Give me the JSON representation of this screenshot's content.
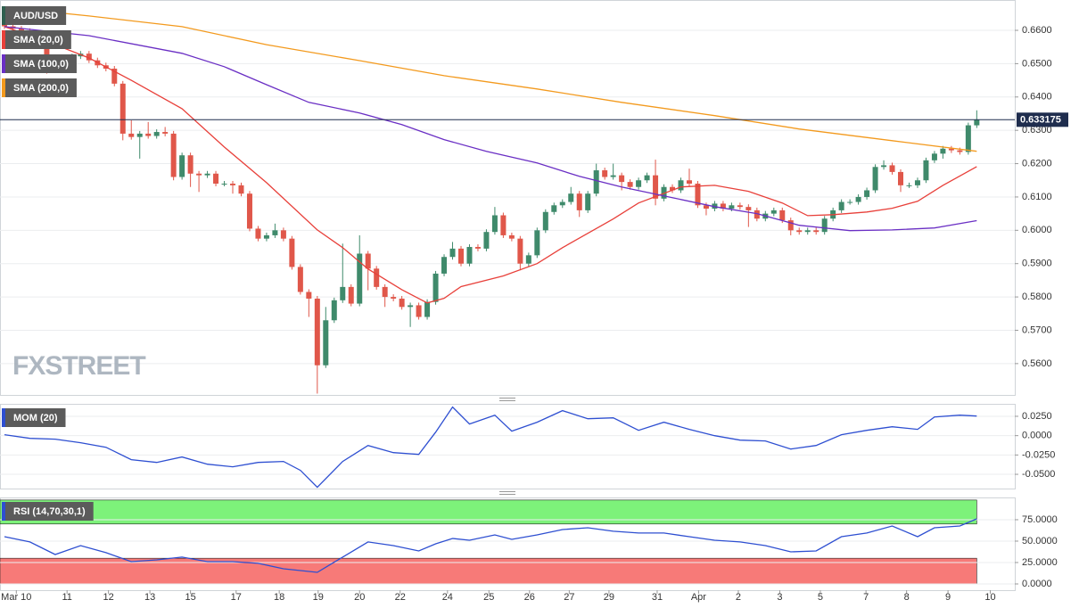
{
  "chart_data": [
    {
      "type": "candlestick",
      "title": "AUD/USD",
      "watermark": "FXSTREET",
      "up_color": "#3f8a6b",
      "down_color": "#e0574a",
      "open": [
        0.662,
        0.6612,
        0.6605,
        0.6598,
        0.6592,
        0.657,
        0.649,
        0.6495,
        0.6518,
        0.6522,
        0.653,
        0.651,
        0.6495,
        0.6485,
        0.644,
        0.629,
        0.628,
        0.629,
        0.6283,
        0.6295,
        0.629,
        0.616,
        0.6225,
        0.617,
        0.6165,
        0.617,
        0.614,
        0.614,
        0.6135,
        0.611,
        0.6005,
        0.5975,
        0.5985,
        0.6,
        0.5975,
        0.589,
        0.5815,
        0.5795,
        0.5595,
        0.573,
        0.579,
        0.583,
        0.578,
        0.593,
        0.5885,
        0.583,
        0.58,
        0.5795,
        0.577,
        0.5775,
        0.574,
        0.5785,
        0.587,
        0.592,
        0.5945,
        0.59,
        0.595,
        0.5945,
        0.5995,
        0.6045,
        0.5985,
        0.5975,
        0.59,
        0.5925,
        0.6,
        0.6055,
        0.6075,
        0.6085,
        0.611,
        0.606,
        0.611,
        0.618,
        0.616,
        0.6165,
        0.6145,
        0.613,
        0.615,
        0.6165,
        0.6095,
        0.613,
        0.612,
        0.615,
        0.614,
        0.6075,
        0.6065,
        0.608,
        0.6065,
        0.6075,
        0.607,
        0.606,
        0.6035,
        0.605,
        0.606,
        0.603,
        0.6,
        0.5995,
        0.6,
        0.5995,
        0.6035,
        0.606,
        0.6085,
        0.6085,
        0.61,
        0.612,
        0.619,
        0.6195,
        0.6175,
        0.6135,
        0.6135,
        0.615,
        0.621,
        0.623,
        0.6245,
        0.624,
        0.6235,
        0.6315
      ],
      "high": [
        0.6628,
        0.662,
        0.6613,
        0.6606,
        0.66,
        0.6578,
        0.6503,
        0.6526,
        0.653,
        0.6538,
        0.6538,
        0.6518,
        0.6503,
        0.6493,
        0.6448,
        0.633,
        0.6298,
        0.6325,
        0.6303,
        0.631,
        0.6298,
        0.6233,
        0.6233,
        0.6178,
        0.6178,
        0.6178,
        0.6148,
        0.6148,
        0.6143,
        0.6118,
        0.6013,
        0.5993,
        0.602,
        0.6008,
        0.5983,
        0.5898,
        0.5823,
        0.5803,
        0.577,
        0.5798,
        0.596,
        0.5838,
        0.5985,
        0.5938,
        0.5893,
        0.5838,
        0.5808,
        0.5803,
        0.5783,
        0.5783,
        0.5793,
        0.5878,
        0.5928,
        0.5965,
        0.5953,
        0.5958,
        0.5958,
        0.6003,
        0.607,
        0.6053,
        0.5993,
        0.5983,
        0.5933,
        0.6008,
        0.6063,
        0.6083,
        0.6093,
        0.613,
        0.6118,
        0.6118,
        0.62,
        0.6188,
        0.62,
        0.6173,
        0.6153,
        0.6158,
        0.6173,
        0.6212,
        0.6138,
        0.6138,
        0.6158,
        0.6185,
        0.6148,
        0.6083,
        0.6088,
        0.6088,
        0.6083,
        0.6083,
        0.6078,
        0.6068,
        0.6058,
        0.6068,
        0.6068,
        0.6038,
        0.6008,
        0.6008,
        0.6008,
        0.6043,
        0.6068,
        0.6093,
        0.6093,
        0.6108,
        0.6128,
        0.6198,
        0.621,
        0.6203,
        0.6183,
        0.6143,
        0.6158,
        0.6218,
        0.6238,
        0.6253,
        0.6253,
        0.6248,
        0.6323,
        0.636
      ],
      "low": [
        0.6604,
        0.6597,
        0.659,
        0.6584,
        0.6562,
        0.647,
        0.6482,
        0.6487,
        0.651,
        0.6514,
        0.6502,
        0.6487,
        0.6477,
        0.6432,
        0.627,
        0.6272,
        0.6215,
        0.6275,
        0.6275,
        0.6282,
        0.615,
        0.6152,
        0.613,
        0.6115,
        0.6157,
        0.6132,
        0.6132,
        0.611,
        0.6102,
        0.5997,
        0.5967,
        0.5967,
        0.5977,
        0.5967,
        0.5882,
        0.5807,
        0.574,
        0.551,
        0.5587,
        0.5722,
        0.5782,
        0.5772,
        0.5772,
        0.582,
        0.5822,
        0.577,
        0.5787,
        0.5762,
        0.571,
        0.5732,
        0.5732,
        0.5777,
        0.5862,
        0.5912,
        0.5892,
        0.5892,
        0.5937,
        0.5937,
        0.5987,
        0.5977,
        0.5967,
        0.588,
        0.5892,
        0.5917,
        0.5992,
        0.6047,
        0.6067,
        0.6077,
        0.604,
        0.6052,
        0.6102,
        0.6152,
        0.6152,
        0.612,
        0.6122,
        0.6122,
        0.6142,
        0.6075,
        0.6087,
        0.6112,
        0.6112,
        0.6132,
        0.6067,
        0.6045,
        0.6057,
        0.6057,
        0.6057,
        0.6062,
        0.601,
        0.6027,
        0.6027,
        0.6042,
        0.6022,
        0.5985,
        0.5987,
        0.5987,
        0.5987,
        0.5987,
        0.6027,
        0.6052,
        0.6077,
        0.6077,
        0.6092,
        0.6112,
        0.6182,
        0.6167,
        0.6115,
        0.6127,
        0.6127,
        0.6142,
        0.6202,
        0.6215,
        0.6232,
        0.6227,
        0.6227,
        0.6307
      ],
      "close": [
        0.6612,
        0.6605,
        0.6598,
        0.6592,
        0.657,
        0.649,
        0.6495,
        0.6518,
        0.6522,
        0.653,
        0.651,
        0.6495,
        0.6485,
        0.644,
        0.629,
        0.628,
        0.629,
        0.6283,
        0.6295,
        0.629,
        0.616,
        0.6225,
        0.617,
        0.6165,
        0.617,
        0.614,
        0.614,
        0.6135,
        0.611,
        0.6005,
        0.5975,
        0.5985,
        0.6,
        0.5975,
        0.589,
        0.5815,
        0.5795,
        0.5595,
        0.573,
        0.579,
        0.583,
        0.578,
        0.593,
        0.5885,
        0.583,
        0.58,
        0.5795,
        0.577,
        0.5775,
        0.574,
        0.5785,
        0.587,
        0.592,
        0.5945,
        0.59,
        0.595,
        0.5945,
        0.5995,
        0.6045,
        0.5985,
        0.5975,
        0.59,
        0.5925,
        0.6,
        0.6055,
        0.6075,
        0.6085,
        0.611,
        0.606,
        0.611,
        0.618,
        0.616,
        0.6165,
        0.6145,
        0.613,
        0.615,
        0.6165,
        0.6095,
        0.613,
        0.612,
        0.615,
        0.614,
        0.6075,
        0.6065,
        0.608,
        0.6065,
        0.6075,
        0.607,
        0.606,
        0.6035,
        0.605,
        0.606,
        0.603,
        0.6,
        0.5995,
        0.6,
        0.5995,
        0.6035,
        0.606,
        0.6085,
        0.6085,
        0.61,
        0.612,
        0.619,
        0.6195,
        0.6175,
        0.6135,
        0.6135,
        0.615,
        0.621,
        0.623,
        0.6245,
        0.624,
        0.6235,
        0.6315,
        0.6332
      ],
      "series": [
        {
          "name": "SMA (20,0)",
          "color": "#e8403a",
          "x": [
            0,
            6,
            10,
            15,
            21,
            26,
            31,
            37,
            40,
            43,
            47,
            50,
            52,
            54,
            59,
            63,
            66,
            69,
            72,
            75,
            80,
            84,
            88,
            92,
            95,
            98,
            102,
            105,
            108,
            111,
            115
          ],
          "values": [
            0.6611,
            0.6557,
            0.6517,
            0.645,
            0.6365,
            0.625,
            0.6143,
            0.6001,
            0.5948,
            0.5884,
            0.5822,
            0.5782,
            0.5796,
            0.5831,
            0.5863,
            0.59,
            0.5948,
            0.5991,
            0.6034,
            0.6082,
            0.613,
            0.6135,
            0.6117,
            0.6082,
            0.6044,
            0.6047,
            0.6055,
            0.6066,
            0.6087,
            0.6135,
            0.6191
          ]
        },
        {
          "name": "SMA (100,0)",
          "color": "#6a2fc4",
          "x": [
            0,
            10,
            21,
            26,
            31,
            36,
            42,
            47,
            52,
            57,
            63,
            68,
            73,
            79,
            84,
            89,
            94,
            100,
            105,
            110,
            115
          ],
          "values": [
            0.6611,
            0.6584,
            0.6531,
            0.6491,
            0.6437,
            0.6384,
            0.6352,
            0.6317,
            0.6272,
            0.6237,
            0.6202,
            0.6162,
            0.613,
            0.6098,
            0.6071,
            0.605,
            0.6015,
            0.5999,
            0.6001,
            0.6007,
            0.6029
          ]
        },
        {
          "name": "SMA (200,0)",
          "color": "#f39a1e",
          "x": [
            0,
            10,
            21,
            31,
            42,
            52,
            63,
            73,
            84,
            94,
            105,
            115
          ],
          "values": [
            0.6669,
            0.6643,
            0.6611,
            0.6557,
            0.6509,
            0.6464,
            0.6424,
            0.6384,
            0.6344,
            0.6304,
            0.6269,
            0.6237
          ]
        }
      ],
      "last_price": 0.633175,
      "last_price_color": "#1f2d4e",
      "xlim": [
        -0.53,
        119.5
      ],
      "ylim": [
        0.5506,
        0.6691
      ],
      "yticks": [
        {
          "value": 0.66,
          "label": "0.6600"
        },
        {
          "value": 0.65,
          "label": "0.6500"
        },
        {
          "value": 0.64,
          "label": "0.6400"
        },
        {
          "value": 0.63,
          "label": "0.6300"
        },
        {
          "value": 0.62,
          "label": "0.6200"
        },
        {
          "value": 0.61,
          "label": "0.6100"
        },
        {
          "value": 0.6,
          "label": "0.6000"
        },
        {
          "value": 0.59,
          "label": "0.5900"
        },
        {
          "value": 0.58,
          "label": "0.5800"
        },
        {
          "value": 0.57,
          "label": "0.5700"
        },
        {
          "value": 0.56,
          "label": "0.5600"
        }
      ],
      "grid": true
    },
    {
      "type": "line",
      "series": [
        {
          "name": "MOM (20)",
          "color": "#2e4fd1",
          "x": [
            0,
            3,
            6,
            9,
            12,
            15,
            18,
            21,
            24,
            27,
            30,
            33,
            35,
            37,
            40,
            43,
            46,
            49,
            51,
            53,
            55,
            58,
            60,
            63,
            66,
            69,
            72,
            75,
            78,
            81,
            84,
            87,
            90,
            93,
            96,
            99,
            102,
            105,
            108,
            110,
            113,
            115
          ],
          "values": [
            0.0012,
            -0.0035,
            -0.0046,
            -0.0092,
            -0.015,
            -0.0311,
            -0.0346,
            -0.0276,
            -0.0369,
            -0.0403,
            -0.0346,
            -0.0334,
            -0.0449,
            -0.0668,
            -0.0334,
            -0.0127,
            -0.0219,
            -0.0242,
            0.0046,
            0.0369,
            0.015,
            0.0265,
            0.0058,
            0.0173,
            0.0323,
            0.0219,
            0.023,
            0.0069,
            0.0173,
            0.0081,
            0.0,
            -0.0058,
            -0.0069,
            -0.0173,
            -0.0127,
            0.0012,
            0.0069,
            0.0115,
            0.0081,
            0.0242,
            0.0265,
            0.0253
          ]
        }
      ],
      "xlim": [
        -0.53,
        119.5
      ],
      "ylim": [
        -0.0684,
        0.0411
      ],
      "yticks": [
        {
          "value": 0.025,
          "label": "0.0250"
        },
        {
          "value": 0,
          "label": "0.0000"
        },
        {
          "value": -0.025,
          "label": "-0.0250"
        },
        {
          "value": -0.05,
          "label": "-0.0500"
        }
      ],
      "grid": true
    },
    {
      "type": "line",
      "series": [
        {
          "name": "RSI (14,70,30,1)",
          "color": "#2e4fd1",
          "x": [
            0,
            3,
            6,
            9,
            12,
            15,
            18,
            21,
            24,
            27,
            30,
            33,
            35,
            37,
            40,
            43,
            46,
            49,
            51,
            53,
            55,
            58,
            60,
            63,
            66,
            69,
            72,
            75,
            78,
            81,
            84,
            87,
            90,
            93,
            96,
            99,
            102,
            105,
            108,
            110,
            113,
            115
          ],
          "values": [
            55.2,
            49.0,
            34.4,
            44.8,
            36.5,
            26.0,
            28.1,
            31.3,
            26.0,
            26.0,
            24.0,
            17.7,
            15.6,
            13.5,
            31.3,
            49.0,
            44.8,
            38.5,
            46.9,
            53.1,
            51.0,
            57.3,
            52.1,
            57.3,
            63.5,
            65.6,
            61.5,
            59.4,
            59.4,
            55.2,
            51.0,
            49.0,
            44.8,
            37.5,
            38.5,
            55.2,
            59.4,
            67.7,
            55.2,
            65.6,
            67.7,
            76.0
          ]
        }
      ],
      "overbought": [
        70,
        98
      ],
      "overbought_color": "#7df27a",
      "oversold": [
        0,
        30
      ],
      "oversold_color": "#f77a78",
      "xlim": [
        -0.53,
        119.5
      ],
      "ylim": [
        -7.3,
        101
      ],
      "yticks": [
        {
          "value": 75,
          "label": "75.0000"
        },
        {
          "value": 50,
          "label": "50.0000"
        },
        {
          "value": 25,
          "label": "25.0000"
        },
        {
          "value": 0,
          "label": "0.0000"
        }
      ],
      "xticks": [
        {
          "value": 1.4,
          "label": "Mar 10"
        },
        7.4,
        12.3,
        17.2,
        22.0,
        27.4,
        32.5,
        37.1,
        42.0,
        46.8,
        52.4,
        57.3,
        62.1,
        66.8,
        71.5,
        77.2,
        {
          "value": 82.1,
          "label": "Apr"
        },
        86.8,
        91.7,
        96.5,
        101.9,
        106.7,
        111.6,
        116.6
      ],
      "xtick_labels": [
        "Mar 10",
        "11",
        "12",
        "13",
        "15",
        "17",
        "18",
        "19",
        "20",
        "22",
        "24",
        "25",
        "26",
        "27",
        "29",
        "31",
        "Apr",
        "2",
        "3",
        "5",
        "7",
        "8",
        "9",
        "10"
      ],
      "grid": true
    }
  ]
}
